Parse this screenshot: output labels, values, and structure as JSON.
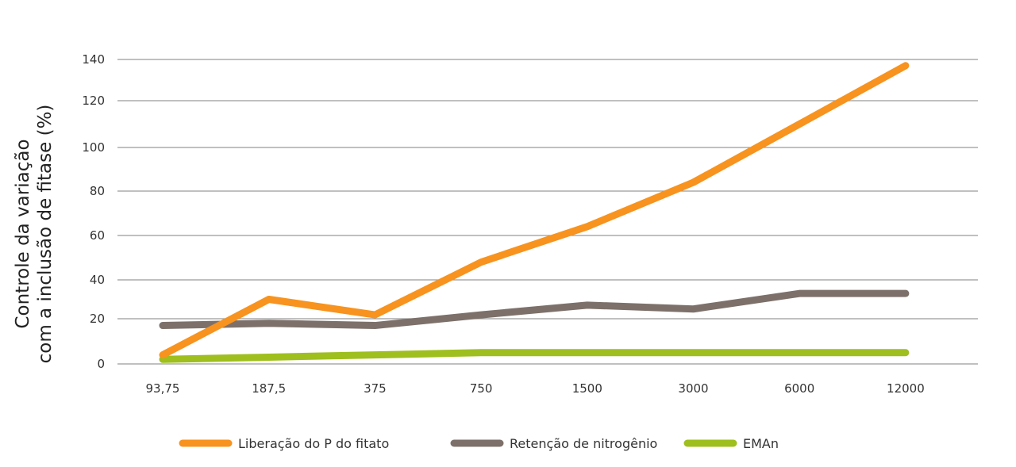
{
  "chart_data": {
    "type": "line",
    "title": "",
    "xlabel": "",
    "ylabel_lines": [
      "Controle da variação",
      "com a inclusão de fitase (%)"
    ],
    "categories": [
      "93,75",
      "187,5",
      "375",
      "750",
      "1500",
      "3000",
      "6000",
      "12000"
    ],
    "yticks": [
      0,
      20,
      40,
      60,
      80,
      100,
      120,
      140
    ],
    "ylim": [
      0,
      140
    ],
    "grid": true,
    "legend_position": "bottom",
    "series": [
      {
        "name": "Liberação do P do fitato",
        "color": "#f7931e",
        "values": [
          4,
          30,
          22,
          48,
          64,
          84,
          110,
          137
        ]
      },
      {
        "name": "Retenção de nitrogênio",
        "color": "#7d706a",
        "values": [
          17,
          18,
          17,
          22,
          27,
          25,
          33,
          33
        ]
      },
      {
        "name": "EMAn",
        "color": "#9ebf1e",
        "values": [
          2,
          3,
          4,
          5,
          5,
          5,
          5,
          5
        ]
      }
    ]
  }
}
